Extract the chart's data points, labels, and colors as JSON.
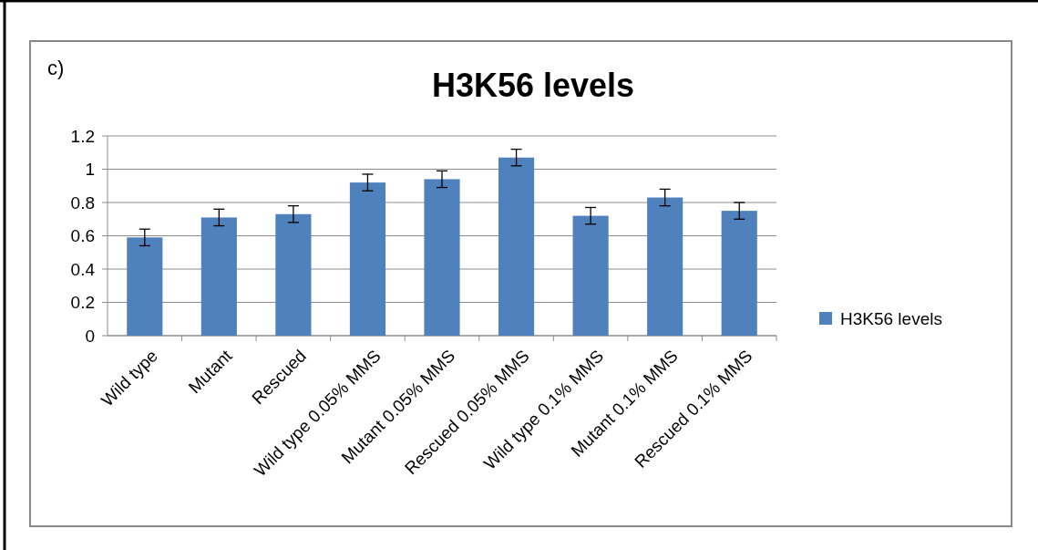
{
  "chart_data": {
    "type": "bar",
    "title": "H3K56 levels",
    "annotations": [
      "c)"
    ],
    "categories": [
      "Wild type",
      "Mutant",
      "Rescued",
      "Wild type 0.05% MMS",
      "Mutant 0.05% MMS",
      "Rescued 0.05% MMS",
      "Wild type 0.1% MMS",
      "Mutant 0.1% MMS",
      "Rescued 0.1% MMS"
    ],
    "series": [
      {
        "name": "H3K56 levels",
        "color": "#4f81bd",
        "values": [
          0.59,
          0.71,
          0.73,
          0.92,
          0.94,
          1.07,
          0.72,
          0.83,
          0.75
        ],
        "errors": [
          0.05,
          0.05,
          0.05,
          0.05,
          0.05,
          0.05,
          0.05,
          0.05,
          0.05
        ]
      }
    ],
    "ylim": [
      0,
      1.2
    ],
    "yticks": [
      0,
      0.2,
      0.4,
      0.6,
      0.8,
      1,
      1.2
    ],
    "grid": "y",
    "legend": "right"
  }
}
